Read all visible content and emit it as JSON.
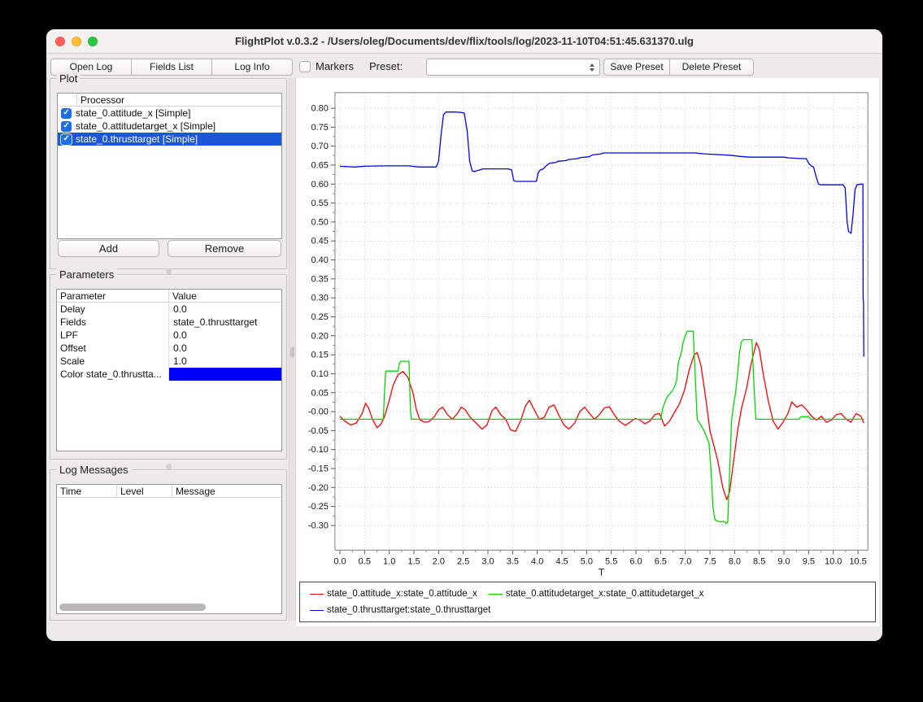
{
  "window": {
    "title": "FlightPlot v.0.3.2 - /Users/oleg/Documents/dev/flix/tools/log/2023-11-10T04:51:45.631370.ulg"
  },
  "toolbar": {
    "open_log": "Open Log",
    "fields_list": "Fields List",
    "log_info": "Log Info",
    "markers_label": "Markers",
    "markers_checked": false,
    "preset_label": "Preset:",
    "preset_value": "",
    "save_preset": "Save Preset",
    "delete_preset": "Delete Preset"
  },
  "plot_panel": {
    "title": "Plot",
    "column_header": "Processor",
    "items": [
      {
        "label": "state_0.attitude_x [Simple]",
        "checked": true,
        "selected": false
      },
      {
        "label": "state_0.attitudetarget_x [Simple]",
        "checked": true,
        "selected": false
      },
      {
        "label": "state_0.thrusttarget [Simple]",
        "checked": true,
        "selected": true
      }
    ],
    "add_label": "Add",
    "remove_label": "Remove"
  },
  "parameters_panel": {
    "title": "Parameters",
    "headers": [
      "Parameter",
      "Value"
    ],
    "rows": [
      {
        "name": "Delay",
        "value": "0.0"
      },
      {
        "name": "Fields",
        "value": "state_0.thrusttarget"
      },
      {
        "name": "LPF",
        "value": "0.0"
      },
      {
        "name": "Offset",
        "value": "0.0"
      },
      {
        "name": "Scale",
        "value": "1.0"
      },
      {
        "name": "Color state_0.thrustta...",
        "value": "",
        "swatch": "#0000ff"
      }
    ]
  },
  "log_panel": {
    "title": "Log Messages",
    "headers": [
      "Time",
      "Level",
      "Message"
    ],
    "rows": []
  },
  "chart_data": {
    "type": "line",
    "title": "",
    "xlabel": "T",
    "ylabel": "",
    "grid": true,
    "legend_position": "bottom",
    "x_axis": {
      "tick_min": 0.0,
      "tick_max": 10.5,
      "tick_step": 0.5,
      "minor_step": 0.25,
      "lim": [
        -0.1,
        10.7
      ]
    },
    "y_axis": {
      "tick_min": -0.3,
      "tick_max": 0.8,
      "tick_step": 0.05,
      "minor_step": 0.025,
      "lim": [
        -0.365,
        0.841
      ]
    },
    "series": [
      {
        "name": "state_0.attitude_x:state_0.attitude_x",
        "color": "#ff0000",
        "points": [
          [
            0.0,
            -0.012
          ],
          [
            0.1,
            -0.025
          ],
          [
            0.22,
            -0.035
          ],
          [
            0.33,
            -0.03
          ],
          [
            0.45,
            -0.005
          ],
          [
            0.52,
            0.022
          ],
          [
            0.58,
            0.01
          ],
          [
            0.66,
            -0.02
          ],
          [
            0.75,
            -0.042
          ],
          [
            0.82,
            -0.035
          ],
          [
            0.9,
            -0.015
          ],
          [
            1.0,
            0.03
          ],
          [
            1.08,
            0.07
          ],
          [
            1.18,
            0.098
          ],
          [
            1.28,
            0.106
          ],
          [
            1.38,
            0.09
          ],
          [
            1.48,
            0.05
          ],
          [
            1.55,
            0.005
          ],
          [
            1.62,
            -0.022
          ],
          [
            1.72,
            -0.028
          ],
          [
            1.82,
            -0.025
          ],
          [
            1.92,
            -0.012
          ],
          [
            2.0,
            0.005
          ],
          [
            2.08,
            0.012
          ],
          [
            2.18,
            -0.008
          ],
          [
            2.28,
            -0.02
          ],
          [
            2.38,
            -0.005
          ],
          [
            2.46,
            0.012
          ],
          [
            2.54,
            0.005
          ],
          [
            2.64,
            -0.015
          ],
          [
            2.76,
            -0.03
          ],
          [
            2.88,
            -0.046
          ],
          [
            2.98,
            -0.035
          ],
          [
            3.08,
            0.002
          ],
          [
            3.16,
            0.012
          ],
          [
            3.26,
            -0.008
          ],
          [
            3.36,
            -0.02
          ],
          [
            3.46,
            -0.048
          ],
          [
            3.56,
            -0.052
          ],
          [
            3.66,
            -0.025
          ],
          [
            3.76,
            0.015
          ],
          [
            3.84,
            0.03
          ],
          [
            3.94,
            0.005
          ],
          [
            4.04,
            -0.02
          ],
          [
            4.14,
            -0.015
          ],
          [
            4.24,
            0.012
          ],
          [
            4.34,
            0.018
          ],
          [
            4.44,
            -0.01
          ],
          [
            4.54,
            -0.035
          ],
          [
            4.64,
            -0.046
          ],
          [
            4.76,
            -0.03
          ],
          [
            4.86,
            0.0
          ],
          [
            4.96,
            0.012
          ],
          [
            5.06,
            -0.005
          ],
          [
            5.16,
            -0.02
          ],
          [
            5.26,
            -0.008
          ],
          [
            5.36,
            0.01
          ],
          [
            5.46,
            0.013
          ],
          [
            5.56,
            -0.008
          ],
          [
            5.66,
            -0.025
          ],
          [
            5.78,
            -0.036
          ],
          [
            5.88,
            -0.028
          ],
          [
            5.98,
            -0.018
          ],
          [
            6.08,
            -0.022
          ],
          [
            6.18,
            -0.032
          ],
          [
            6.28,
            -0.025
          ],
          [
            6.38,
            -0.008
          ],
          [
            6.48,
            -0.005
          ],
          [
            6.58,
            -0.038
          ],
          [
            6.68,
            -0.025
          ],
          [
            6.78,
            -0.002
          ],
          [
            6.88,
            0.02
          ],
          [
            6.98,
            0.055
          ],
          [
            7.08,
            0.11
          ],
          [
            7.18,
            0.15
          ],
          [
            7.24,
            0.156
          ],
          [
            7.32,
            0.12
          ],
          [
            7.42,
            0.03
          ],
          [
            7.5,
            -0.05
          ],
          [
            7.58,
            -0.09
          ],
          [
            7.66,
            -0.13
          ],
          [
            7.76,
            -0.2
          ],
          [
            7.84,
            -0.232
          ],
          [
            7.9,
            -0.21
          ],
          [
            7.98,
            -0.13
          ],
          [
            8.06,
            -0.05
          ],
          [
            8.14,
            0.01
          ],
          [
            8.24,
            0.06
          ],
          [
            8.34,
            0.13
          ],
          [
            8.44,
            0.182
          ],
          [
            8.5,
            0.165
          ],
          [
            8.58,
            0.1
          ],
          [
            8.68,
            0.03
          ],
          [
            8.78,
            -0.025
          ],
          [
            8.88,
            -0.046
          ],
          [
            8.98,
            -0.028
          ],
          [
            9.08,
            -0.005
          ],
          [
            9.16,
            0.026
          ],
          [
            9.26,
            0.012
          ],
          [
            9.36,
            0.018
          ],
          [
            9.46,
            0.005
          ],
          [
            9.56,
            -0.012
          ],
          [
            9.66,
            -0.022
          ],
          [
            9.76,
            -0.012
          ],
          [
            9.86,
            -0.028
          ],
          [
            9.96,
            -0.022
          ],
          [
            10.06,
            -0.008
          ],
          [
            10.16,
            -0.005
          ],
          [
            10.26,
            -0.02
          ],
          [
            10.36,
            -0.028
          ],
          [
            10.46,
            -0.005
          ],
          [
            10.56,
            -0.012
          ],
          [
            10.62,
            -0.03
          ]
        ]
      },
      {
        "name": "state_0.attitudetarget_x:state_0.attitudetarget_x",
        "color": "#00d800",
        "points": [
          [
            0.0,
            -0.02
          ],
          [
            0.88,
            -0.02
          ],
          [
            0.9,
            0.045
          ],
          [
            0.93,
            0.107
          ],
          [
            1.18,
            0.107
          ],
          [
            1.2,
            0.125
          ],
          [
            1.23,
            0.133
          ],
          [
            1.4,
            0.133
          ],
          [
            1.43,
            0.0
          ],
          [
            1.45,
            -0.02
          ],
          [
            6.5,
            -0.02
          ],
          [
            6.55,
            0.012
          ],
          [
            6.6,
            0.03
          ],
          [
            6.65,
            0.042
          ],
          [
            6.72,
            0.052
          ],
          [
            6.78,
            0.065
          ],
          [
            6.82,
            0.08
          ],
          [
            6.86,
            0.13
          ],
          [
            6.92,
            0.155
          ],
          [
            6.96,
            0.185
          ],
          [
            7.0,
            0.2
          ],
          [
            7.04,
            0.212
          ],
          [
            7.16,
            0.212
          ],
          [
            7.2,
            0.1
          ],
          [
            7.24,
            -0.02
          ],
          [
            7.3,
            -0.032
          ],
          [
            7.38,
            -0.05
          ],
          [
            7.44,
            -0.07
          ],
          [
            7.48,
            -0.082
          ],
          [
            7.52,
            -0.15
          ],
          [
            7.56,
            -0.25
          ],
          [
            7.6,
            -0.285
          ],
          [
            7.68,
            -0.29
          ],
          [
            7.8,
            -0.29
          ],
          [
            7.83,
            -0.295
          ],
          [
            7.86,
            -0.29
          ],
          [
            7.9,
            -0.15
          ],
          [
            7.94,
            -0.02
          ],
          [
            7.98,
            0.02
          ],
          [
            8.02,
            0.05
          ],
          [
            8.06,
            0.1
          ],
          [
            8.1,
            0.155
          ],
          [
            8.14,
            0.185
          ],
          [
            8.18,
            0.19
          ],
          [
            8.35,
            0.19
          ],
          [
            8.4,
            0.05
          ],
          [
            8.43,
            -0.02
          ],
          [
            9.3,
            -0.02
          ],
          [
            9.35,
            -0.013
          ],
          [
            9.5,
            -0.013
          ],
          [
            9.55,
            -0.02
          ],
          [
            10.62,
            -0.02
          ]
        ]
      },
      {
        "name": "state_0.thrusttarget:state_0.thrusttarget",
        "color": "#0000ff",
        "points": [
          [
            0.0,
            0.647
          ],
          [
            0.3,
            0.645
          ],
          [
            0.5,
            0.647
          ],
          [
            0.9,
            0.648
          ],
          [
            1.4,
            0.648
          ],
          [
            1.6,
            0.645
          ],
          [
            1.95,
            0.645
          ],
          [
            2.0,
            0.66
          ],
          [
            2.05,
            0.73
          ],
          [
            2.1,
            0.783
          ],
          [
            2.15,
            0.79
          ],
          [
            2.3,
            0.79
          ],
          [
            2.45,
            0.789
          ],
          [
            2.52,
            0.787
          ],
          [
            2.58,
            0.74
          ],
          [
            2.63,
            0.66
          ],
          [
            2.68,
            0.635
          ],
          [
            2.72,
            0.633
          ],
          [
            2.8,
            0.636
          ],
          [
            2.9,
            0.64
          ],
          [
            3.4,
            0.64
          ],
          [
            3.48,
            0.638
          ],
          [
            3.52,
            0.61
          ],
          [
            3.56,
            0.607
          ],
          [
            3.98,
            0.607
          ],
          [
            4.02,
            0.63
          ],
          [
            4.06,
            0.637
          ],
          [
            4.12,
            0.64
          ],
          [
            4.18,
            0.648
          ],
          [
            4.25,
            0.655
          ],
          [
            4.38,
            0.657
          ],
          [
            4.42,
            0.66
          ],
          [
            4.58,
            0.662
          ],
          [
            4.64,
            0.665
          ],
          [
            4.82,
            0.667
          ],
          [
            4.88,
            0.67
          ],
          [
            5.05,
            0.672
          ],
          [
            5.12,
            0.677
          ],
          [
            5.28,
            0.679
          ],
          [
            5.34,
            0.682
          ],
          [
            6.2,
            0.682
          ],
          [
            7.2,
            0.682
          ],
          [
            7.35,
            0.68
          ],
          [
            7.6,
            0.678
          ],
          [
            7.9,
            0.676
          ],
          [
            8.1,
            0.673
          ],
          [
            8.3,
            0.671
          ],
          [
            9.0,
            0.671
          ],
          [
            9.1,
            0.669
          ],
          [
            9.35,
            0.667
          ],
          [
            9.45,
            0.667
          ],
          [
            9.5,
            0.655
          ],
          [
            9.55,
            0.648
          ],
          [
            9.6,
            0.645
          ],
          [
            9.65,
            0.62
          ],
          [
            9.7,
            0.6
          ],
          [
            9.75,
            0.598
          ],
          [
            10.2,
            0.598
          ],
          [
            10.24,
            0.59
          ],
          [
            10.28,
            0.5
          ],
          [
            10.31,
            0.475
          ],
          [
            10.36,
            0.47
          ],
          [
            10.4,
            0.52
          ],
          [
            10.44,
            0.585
          ],
          [
            10.48,
            0.598
          ],
          [
            10.56,
            0.6
          ],
          [
            10.6,
            0.6
          ],
          [
            10.605,
            0.3
          ],
          [
            10.612,
            0.29
          ],
          [
            10.618,
            0.145
          ]
        ]
      }
    ],
    "legend_rows": [
      [
        0,
        1
      ],
      [
        2
      ]
    ]
  }
}
